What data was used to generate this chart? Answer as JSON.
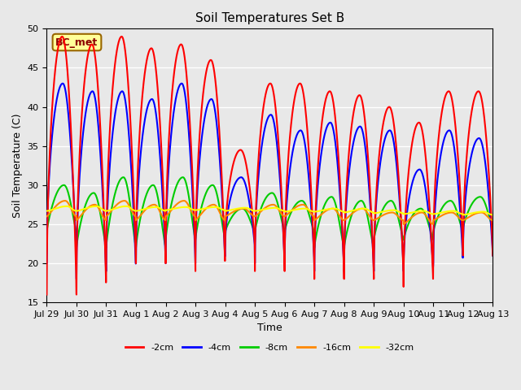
{
  "title": "Soil Temperatures Set B",
  "xlabel": "Time",
  "ylabel": "Soil Temperature (C)",
  "ylim": [
    15,
    50
  ],
  "yticks": [
    15,
    20,
    25,
    30,
    35,
    40,
    45,
    50
  ],
  "colors": {
    "-2cm": "#ff0000",
    "-4cm": "#0000ff",
    "-8cm": "#00cc00",
    "-16cm": "#ff8800",
    "-32cm": "#ffff00"
  },
  "annotation_text": "BC_met",
  "annotation_bg": "#ffff99",
  "annotation_border": "#996600",
  "x_tick_labels": [
    "Jul 29",
    "Jul 30",
    "Jul 31",
    "Aug 1",
    "Aug 2",
    "Aug 3",
    "Aug 4",
    "Aug 5",
    "Aug 6",
    "Aug 7",
    "Aug 8",
    "Aug 9",
    "Aug 10",
    "Aug 11",
    "Aug 12",
    "Aug 13"
  ],
  "plot_bg": "#e8e8e8",
  "grid_color": "#ffffff",
  "line_width": 1.5,
  "fig_bg": "#e8e8e8"
}
